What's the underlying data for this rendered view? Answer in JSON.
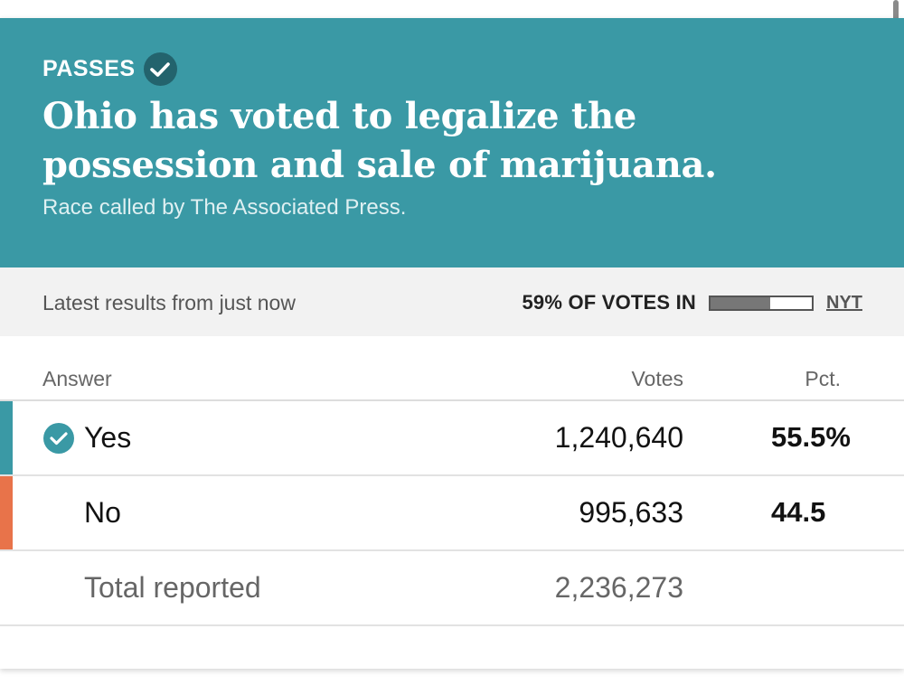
{
  "banner": {
    "status": "PASSES",
    "headline_line1": "Ohio has voted to legalize the",
    "headline_line2": "possession and sale of marijuana.",
    "called_by": "Race called by The Associated Press.",
    "background_color": "#3a99a5"
  },
  "meta": {
    "latest": "Latest results from just now",
    "votes_in": "59% OF VOTES IN",
    "votes_in_fraction": 0.59,
    "source_link": "NYT"
  },
  "table": {
    "headers": {
      "answer": "Answer",
      "votes": "Votes",
      "pct": "Pct."
    },
    "rows": [
      {
        "answer": "Yes",
        "votes": "1,240,640",
        "pct": "55.5%",
        "winner": true,
        "color": "#3a99a5"
      },
      {
        "answer": "No",
        "votes": "995,633",
        "pct": "44.5",
        "winner": false,
        "color": "#e8734a"
      }
    ],
    "total": {
      "label": "Total reported",
      "votes": "2,236,273"
    }
  }
}
